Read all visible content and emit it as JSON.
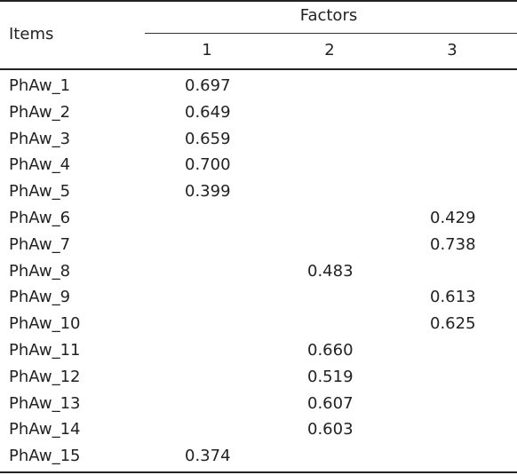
{
  "header": {
    "items_label": "Items",
    "factors_label": "Factors",
    "factor_columns": [
      "1",
      "2",
      "3"
    ]
  },
  "rows": [
    {
      "item": "PhAw_1",
      "f1": "0.697",
      "f2": "",
      "f3": ""
    },
    {
      "item": "PhAw_2",
      "f1": "0.649",
      "f2": "",
      "f3": ""
    },
    {
      "item": "PhAw_3",
      "f1": "0.659",
      "f2": "",
      "f3": ""
    },
    {
      "item": "PhAw_4",
      "f1": "0.700",
      "f2": "",
      "f3": ""
    },
    {
      "item": "PhAw_5",
      "f1": "0.399",
      "f2": "",
      "f3": ""
    },
    {
      "item": "PhAw_6",
      "f1": "",
      "f2": "",
      "f3": "0.429"
    },
    {
      "item": "PhAw_7",
      "f1": "",
      "f2": "",
      "f3": "0.738"
    },
    {
      "item": "PhAw_8",
      "f1": "",
      "f2": "0.483",
      "f3": ""
    },
    {
      "item": "PhAw_9",
      "f1": "",
      "f2": "",
      "f3": "0.613"
    },
    {
      "item": "PhAw_10",
      "f1": "",
      "f2": "",
      "f3": "0.625"
    },
    {
      "item": "PhAw_11",
      "f1": "",
      "f2": "0.660",
      "f3": ""
    },
    {
      "item": "PhAw_12",
      "f1": "",
      "f2": "0.519",
      "f3": ""
    },
    {
      "item": "PhAw_13",
      "f1": "",
      "f2": "0.607",
      "f3": ""
    },
    {
      "item": "PhAw_14",
      "f1": "",
      "f2": "0.603",
      "f3": ""
    },
    {
      "item": "PhAw_15",
      "f1": "0.374",
      "f2": "",
      "f3": ""
    }
  ]
}
